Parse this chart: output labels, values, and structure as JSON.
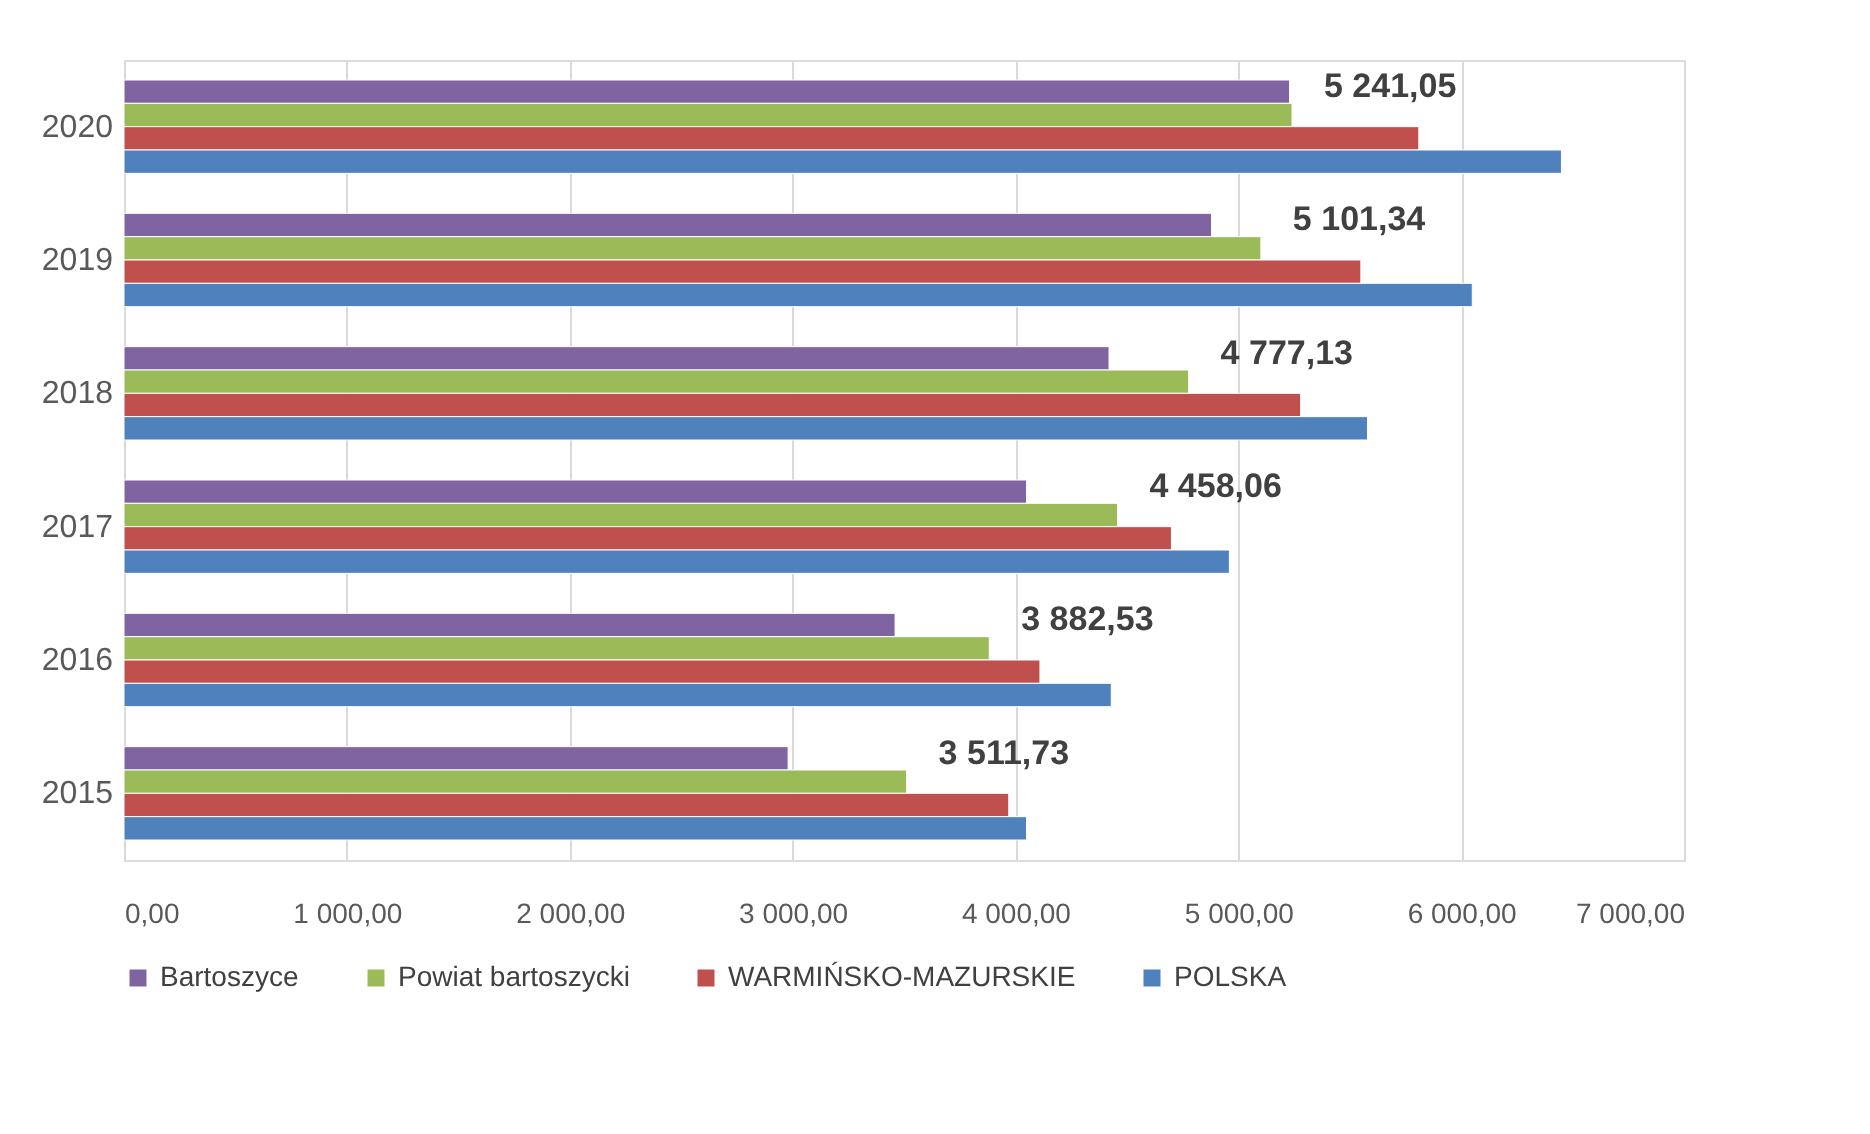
{
  "chart_data": {
    "type": "bar",
    "orientation": "horizontal",
    "categories": [
      "2020",
      "2019",
      "2018",
      "2017",
      "2016",
      "2015"
    ],
    "series": [
      {
        "name": "Bartoszyce",
        "color": "#8064a2",
        "values": [
          5230,
          4880,
          4420,
          4050,
          3460,
          2980
        ]
      },
      {
        "name": "Powiat bartoszycki",
        "color": "#9bbb59",
        "values": [
          5241.05,
          5101.34,
          4777.13,
          4458.06,
          3882.53,
          3511.73
        ],
        "value_labels": [
          "5 241,05",
          "5 101,34",
          "4 777,13",
          "4 458,06",
          "3 882,53",
          "3 511,73"
        ]
      },
      {
        "name": "WARMIŃSKO-MAZURSKIE",
        "color": "#c0504d",
        "values": [
          5810,
          5550,
          5280,
          4700,
          4110,
          3970
        ]
      },
      {
        "name": "POLSKA",
        "color": "#4f81bd",
        "values": [
          6450,
          6050,
          5580,
          4960,
          4430,
          4050
        ]
      }
    ],
    "xlim": [
      0,
      7000
    ],
    "xticks": [
      {
        "value": 0,
        "label": "0,00"
      },
      {
        "value": 1000,
        "label": "1 000,00"
      },
      {
        "value": 2000,
        "label": "2 000,00"
      },
      {
        "value": 3000,
        "label": "3 000,00"
      },
      {
        "value": 4000,
        "label": "4 000,00"
      },
      {
        "value": 5000,
        "label": "5 000,00"
      },
      {
        "value": 6000,
        "label": "6 000,00"
      },
      {
        "value": 7000,
        "label": "7 000,00"
      }
    ],
    "grid": "x",
    "legend": "bottom"
  }
}
